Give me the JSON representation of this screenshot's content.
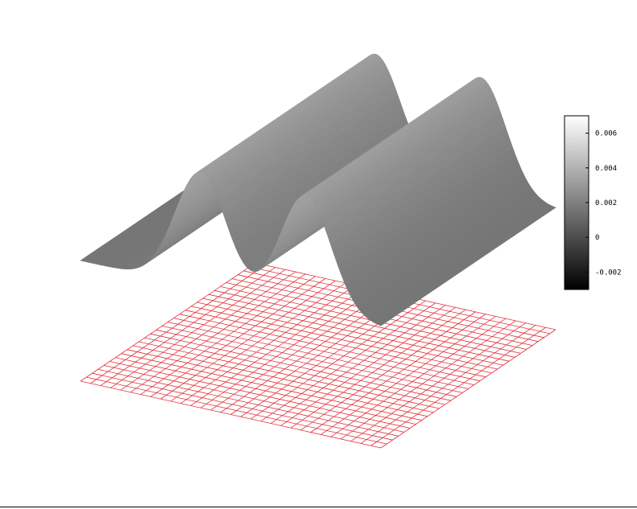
{
  "chart_data": {
    "type": "surface3d",
    "title": "",
    "xlabel": "",
    "ylabel": "",
    "zlabel": "",
    "surface": {
      "description_of_shape": "ridged wave surface, constant along one axis, with a base grid plane beneath",
      "ridge_count": 2,
      "zlim": [
        -0.003,
        0.007
      ],
      "base_level": 0.0,
      "peak_value": 0.0065
    },
    "base_grid": {
      "divisions": 30,
      "color": "#e0303a"
    },
    "colorbar": {
      "ticks": [
        {
          "value": 0.006,
          "label": "0.006"
        },
        {
          "value": 0.004,
          "label": "0.004"
        },
        {
          "value": 0.002,
          "label": "0.002"
        },
        {
          "value": 0.0,
          "label": "0"
        },
        {
          "value": -0.002,
          "label": "-0.002"
        }
      ],
      "min": -0.003,
      "max": 0.007,
      "colormap": "gray"
    }
  }
}
